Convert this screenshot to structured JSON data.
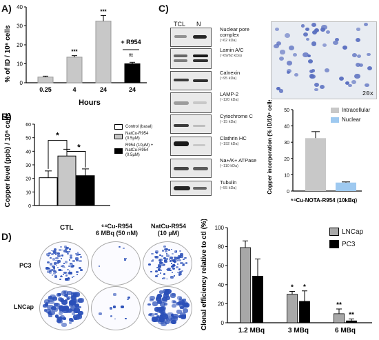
{
  "panels": {
    "A": "A)",
    "B": "B)",
    "C": "C)",
    "D": "D)"
  },
  "panelA": {
    "ylabel": "% of ID / 10⁶ cells",
    "xlabel": "Hours",
    "annotation_r954": "+ R954",
    "annotation_ttt": "ttt"
  },
  "panelB": {
    "ylabel": "Copper level (ppb) / 10⁶ cells",
    "legend": [
      {
        "label": "Control (basal)",
        "color": "#ffffff"
      },
      {
        "label": "NatCu-R954 (0.5µM)",
        "color": "#c8c8c8"
      },
      {
        "label": "R954 (10µM) + NatCu-R954 (0.5µM)",
        "color": "#000000"
      }
    ]
  },
  "panelC": {
    "col_tcl": "TCL",
    "col_n": "N",
    "markers": [
      {
        "name": "Nuclear pore complex",
        "kda": "(~62 kDa)"
      },
      {
        "name": "Lamin A/C",
        "kda": "(~69/62 kDa)"
      },
      {
        "name": "Calnexin",
        "kda": "(~95 kDa)"
      },
      {
        "name": "LAMP-2",
        "kda": "(~120 kDa)"
      },
      {
        "name": "Cytochrome C",
        "kda": "(~15 kDa)"
      },
      {
        "name": "Clathrin HC",
        "kda": "(~192 kDa)"
      },
      {
        "name": "Na+/K+ ATPase",
        "kda": "(~110 kDa)"
      },
      {
        "name": "Tubulin",
        "kda": "(~55 kDa)"
      }
    ],
    "magnification": "20x",
    "ylabel": "Copper incorporation (% ID/10⁶ cells)",
    "xlabel": "⁶⁴Cu-NOTA-R954 (10kBq)",
    "legend": [
      {
        "label": "Intracellular",
        "color": "#c8c8c8"
      },
      {
        "label": "Nuclear",
        "color": "#9ec9f0"
      }
    ]
  },
  "panelD": {
    "col_ctl": "CTL",
    "col_64cu": "⁶⁴Cu-R954",
    "col_64cu_sub": "6 MBq (50 nM)",
    "col_natcu": "NatCu-R954",
    "col_natcu_sub": "(10 µM)",
    "row_pc3": "PC3",
    "row_lncap": "LNCap",
    "ylabel": "Clonal efficiency relative to ctl (%)"
  },
  "chart_data": [
    {
      "id": "A",
      "type": "bar",
      "categories": [
        "0.25",
        "4",
        "24",
        "24"
      ],
      "values": [
        3,
        13.5,
        32.5,
        10
      ],
      "errors": [
        0.5,
        0.8,
        3,
        0.8
      ],
      "colors": [
        "#c8c8c8",
        "#c8c8c8",
        "#c8c8c8",
        "#000000"
      ],
      "significance": [
        "",
        "***",
        "***",
        ""
      ],
      "ylim": [
        0,
        40
      ],
      "yticks": [
        0,
        10,
        20,
        30,
        40
      ],
      "xlabel": "Hours",
      "ylabel": "% of ID / 10⁶ cells"
    },
    {
      "id": "B",
      "type": "bar",
      "categories": [
        "Control (basal)",
        "NatCu-R954 (0.5µM)",
        "R954 (10µM) + NatCu-R954 (0.5µM)"
      ],
      "values": [
        20.5,
        36.5,
        22
      ],
      "errors": [
        5,
        5,
        5
      ],
      "colors": [
        "#ffffff",
        "#c8c8c8",
        "#000000"
      ],
      "significance_brackets": [
        "*",
        "*"
      ],
      "ylim": [
        0,
        60
      ],
      "yticks": [
        0,
        10,
        20,
        30,
        40,
        50,
        60
      ],
      "ylabel": "Copper level (ppb) / 10⁶ cells"
    },
    {
      "id": "C",
      "type": "bar",
      "series": [
        {
          "name": "Intracellular",
          "values": [
            32.5
          ],
          "errors": [
            4
          ],
          "color": "#c8c8c8"
        },
        {
          "name": "Nuclear",
          "values": [
            5.2
          ],
          "errors": [
            0.4
          ],
          "color": "#9ec9f0"
        }
      ],
      "ylim": [
        0,
        50
      ],
      "yticks": [
        0,
        10,
        20,
        30,
        40,
        50
      ],
      "xlabel": "⁶⁴Cu-NOTA-R954 (10kBq)",
      "ylabel": "Copper incorporation (% ID/10⁶ cells)",
      "legend": "top-right"
    },
    {
      "id": "D",
      "type": "bar",
      "categories": [
        "1.2 MBq",
        "3 MBq",
        "6 MBq"
      ],
      "series": [
        {
          "name": "LNCap",
          "values": [
            79,
            30,
            9.5
          ],
          "errors": [
            7,
            3,
            5
          ],
          "color": "#a8a8a8",
          "significance": [
            "",
            "*",
            "**"
          ]
        },
        {
          "name": "PC3",
          "values": [
            49,
            22.5,
            2
          ],
          "errors": [
            18,
            11,
            2
          ],
          "color": "#000000",
          "significance": [
            "",
            "*",
            "**"
          ]
        }
      ],
      "ylim": [
        0,
        100
      ],
      "yticks": [
        0,
        20,
        40,
        60,
        80,
        100
      ],
      "ylabel": "Clonal efficiency relative to ctl (%)",
      "legend": "top-right"
    }
  ]
}
